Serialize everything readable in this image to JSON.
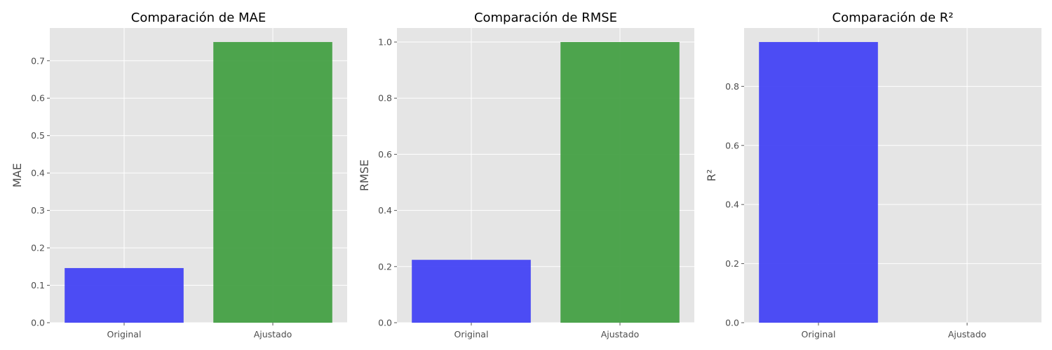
{
  "chart_data": [
    {
      "type": "bar",
      "title": "Comparación de MAE",
      "ylabel": "MAE",
      "xlabel": "",
      "categories": [
        "Original",
        "Ajustado"
      ],
      "values": [
        0.146,
        0.75
      ],
      "colors": [
        "#4343f4",
        "#44a044"
      ],
      "ylim": [
        0,
        0.7875
      ],
      "yticks": [
        0.0,
        0.1,
        0.2,
        0.3,
        0.4,
        0.5,
        0.6,
        0.7
      ],
      "ytick_labels": [
        "0.0",
        "0.1",
        "0.2",
        "0.3",
        "0.4",
        "0.5",
        "0.6",
        "0.7"
      ],
      "grid": true
    },
    {
      "type": "bar",
      "title": "Comparación de RMSE",
      "ylabel": "RMSE",
      "xlabel": "",
      "categories": [
        "Original",
        "Ajustado"
      ],
      "values": [
        0.224,
        1.0
      ],
      "colors": [
        "#4343f4",
        "#44a044"
      ],
      "ylim": [
        0,
        1.05
      ],
      "yticks": [
        0.0,
        0.2,
        0.4,
        0.6,
        0.8,
        1.0
      ],
      "ytick_labels": [
        "0.0",
        "0.2",
        "0.4",
        "0.6",
        "0.8",
        "1.0"
      ],
      "grid": true
    },
    {
      "type": "bar",
      "title": "Comparación de R²",
      "ylabel": "R²",
      "xlabel": "",
      "categories": [
        "Original",
        "Ajustado"
      ],
      "values": [
        0.95,
        0.0
      ],
      "colors": [
        "#4343f4",
        "#44a044"
      ],
      "ylim": [
        0,
        0.9975
      ],
      "yticks": [
        0.0,
        0.2,
        0.4,
        0.6,
        0.8
      ],
      "ytick_labels": [
        "0.0",
        "0.2",
        "0.4",
        "0.6",
        "0.8"
      ],
      "grid": true
    }
  ]
}
